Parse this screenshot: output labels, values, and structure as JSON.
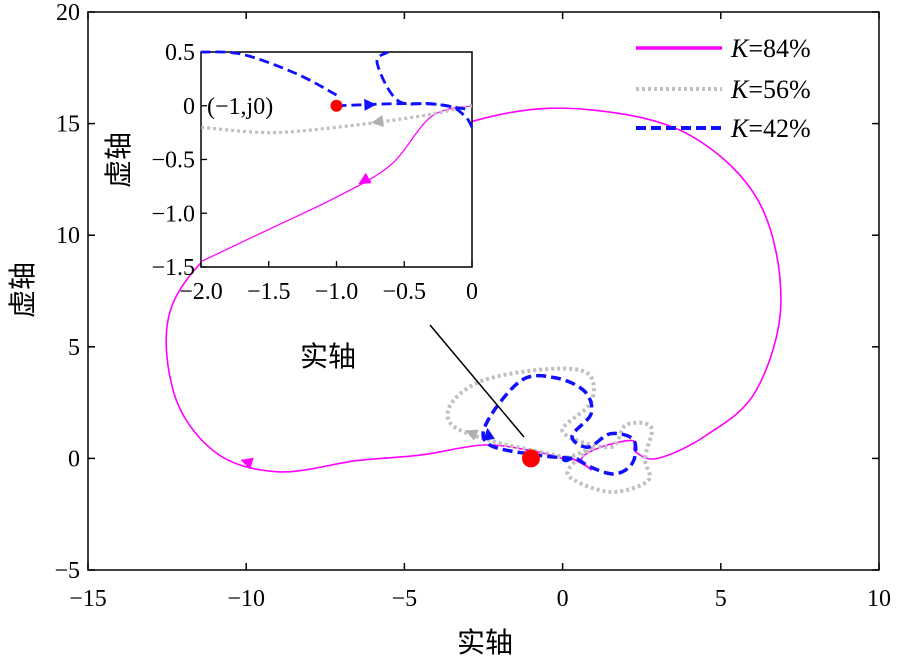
{
  "chart_data": {
    "type": "line",
    "title": "",
    "xlabel": "实轴",
    "ylabel": "虚轴",
    "xlim": [
      -15,
      10
    ],
    "ylim": [
      -5,
      20
    ],
    "xticks": [
      "−15",
      "−10",
      "−5",
      "0",
      "5",
      "10"
    ],
    "yticks": [
      "−5",
      "0",
      "5",
      "10",
      "15",
      "20"
    ],
    "legend": [
      {
        "label_k": "K",
        "label_rest": "=84%",
        "color": "#ff00ff",
        "style": "solid"
      },
      {
        "label_k": "K",
        "label_rest": "=56%",
        "color": "#c0c0c0",
        "style": "dotted"
      },
      {
        "label_k": "K",
        "label_rest": "=42%",
        "color": "#1010ff",
        "style": "dashed"
      }
    ],
    "critical_point": {
      "x": -1,
      "y": 0,
      "color": "#ff0000"
    },
    "series": [
      {
        "name": "K=84%",
        "color": "#ff00ff",
        "points": [
          [
            0,
            0
          ],
          [
            -1,
            0.35
          ],
          [
            -2.5,
            0.6
          ],
          [
            -4.5,
            0.15
          ],
          [
            -6.5,
            -0.1
          ],
          [
            -9,
            -0.6
          ],
          [
            -11,
            0.3
          ],
          [
            -12.3,
            3
          ],
          [
            -12.3,
            7
          ],
          [
            -10,
            10.5
          ],
          [
            -6,
            13.5
          ],
          [
            -2,
            15.4
          ],
          [
            1,
            15.6
          ],
          [
            4,
            14.5
          ],
          [
            6.2,
            11.5
          ],
          [
            6.9,
            7
          ],
          [
            6.1,
            3
          ],
          [
            4.5,
            1
          ],
          [
            3,
            0
          ],
          [
            2.3,
            0.3
          ],
          [
            2.2,
            0.8
          ],
          [
            1.2,
            0.5
          ],
          [
            0.6,
            0
          ],
          [
            0.9,
            -0.5
          ],
          [
            0.7,
            -0.3
          ],
          [
            0.2,
            0.05
          ],
          [
            0,
            0
          ]
        ]
      },
      {
        "name": "K=56%",
        "color": "#c0c0c0",
        "points": [
          [
            0.3,
            0
          ],
          [
            -0.6,
            0.25
          ],
          [
            -2.3,
            0.8
          ],
          [
            -3.5,
            1.5
          ],
          [
            -3.5,
            2.5
          ],
          [
            -2.5,
            3.5
          ],
          [
            -0.5,
            4
          ],
          [
            0.8,
            3.8
          ],
          [
            0.9,
            2.5
          ],
          [
            0,
            1.2
          ],
          [
            1.5,
            0.5
          ],
          [
            2,
            1.5
          ],
          [
            2.8,
            1.4
          ],
          [
            2.6,
            0
          ],
          [
            2.7,
            -1
          ],
          [
            1.5,
            -1.5
          ],
          [
            0.2,
            -0.8
          ],
          [
            0.5,
            0
          ],
          [
            1,
            0.5
          ],
          [
            0.3,
            0.1
          ],
          [
            0,
            0
          ]
        ]
      },
      {
        "name": "K=42%",
        "color": "#1010ff",
        "points": [
          [
            0.3,
            0
          ],
          [
            -0.8,
            0.15
          ],
          [
            -2.3,
            0.6
          ],
          [
            -2.4,
            1.6
          ],
          [
            -1.3,
            3.5
          ],
          [
            -0.2,
            3.6
          ],
          [
            0.7,
            3
          ],
          [
            0.9,
            2
          ],
          [
            0.3,
            1
          ],
          [
            0.8,
            0.5
          ],
          [
            1.5,
            1.1
          ],
          [
            2.2,
            0.9
          ],
          [
            2.3,
            0.2
          ],
          [
            2.1,
            -0.4
          ],
          [
            1.6,
            -0.7
          ],
          [
            0.9,
            -0.4
          ],
          [
            0.4,
            0
          ],
          [
            0.1,
            -0.1
          ],
          [
            0,
            0
          ]
        ]
      }
    ],
    "inset": {
      "xlim": [
        -2,
        0
      ],
      "ylim": [
        -1.5,
        0.5
      ],
      "xlabel": "实轴",
      "ylabel": "虚轴",
      "xticks": [
        "−2.0",
        "−1.5",
        "−1.0",
        "−0.5",
        "0"
      ],
      "yticks": [
        "0.5",
        "0",
        "−0.5",
        "−1.0",
        "−1.5"
      ],
      "annotation": "(−1,j0)",
      "series": [
        {
          "name": "K=84%",
          "color": "#ff00ff",
          "points": [
            [
              0,
              0
            ],
            [
              -0.3,
              -0.1
            ],
            [
              -0.6,
              -0.55
            ],
            [
              -1.0,
              -0.85
            ],
            [
              -1.5,
              -1.15
            ],
            [
              -2,
              -1.45
            ]
          ]
        },
        {
          "name": "K=56%",
          "color": "#c0c0c0",
          "points": [
            [
              0,
              0
            ],
            [
              -0.4,
              -0.1
            ],
            [
              -1.0,
              -0.2
            ],
            [
              -1.5,
              -0.25
            ],
            [
              -2,
              -0.2
            ]
          ]
        },
        {
          "name": "K=42%",
          "color": "#1010ff",
          "points": [
            [
              -1.0,
              0
            ],
            [
              -0.5,
              0.02
            ],
            [
              -0.18,
              0.0
            ],
            [
              -0.05,
              -0.1
            ],
            [
              0,
              -0.2
            ]
          ]
        },
        {
          "name": "K=42%b",
          "color": "#1010ff",
          "points": [
            [
              -0.05,
              -0.03
            ],
            [
              -0.3,
              0.02
            ],
            [
              -0.55,
              0.05
            ],
            [
              -0.7,
              0.4
            ],
            [
              -0.62,
              0.5
            ]
          ]
        },
        {
          "name": "K=42%c",
          "color": "#1010ff",
          "points": [
            [
              -1.0,
              0.1
            ],
            [
              -1.3,
              0.3
            ],
            [
              -1.7,
              0.48
            ],
            [
              -2,
              0.5
            ]
          ]
        }
      ]
    }
  }
}
